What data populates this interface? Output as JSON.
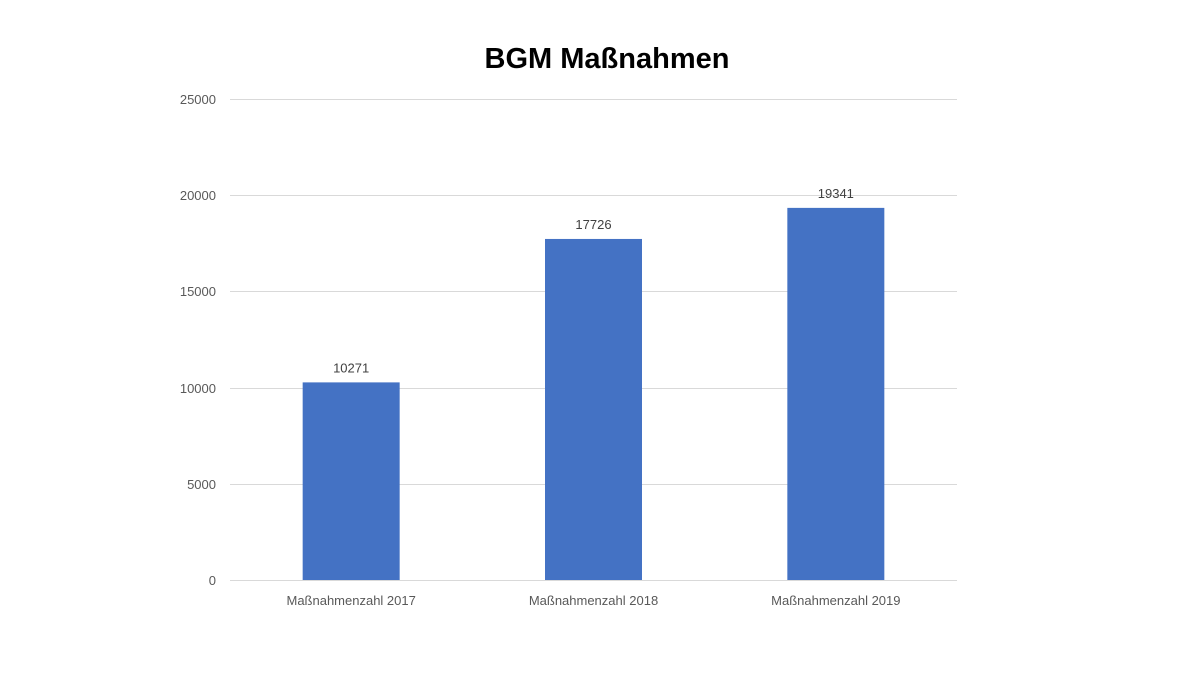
{
  "chart_data": {
    "type": "bar",
    "title": "BGM Maßnahmen",
    "categories": [
      "Maßnahmenzahl 2017",
      "Maßnahmenzahl 2018",
      "Maßnahmenzahl 2019"
    ],
    "values": [
      10271,
      17726,
      19341
    ],
    "data_labels": [
      "10271",
      "17726",
      "19341"
    ],
    "xlabel": "",
    "ylabel": "",
    "ylim": [
      0,
      25000
    ],
    "yticks": [
      0,
      5000,
      10000,
      15000,
      20000,
      25000
    ],
    "ytick_labels": [
      "0",
      "5000",
      "10000",
      "15000",
      "20000",
      "25000"
    ],
    "grid": true,
    "legend": "none",
    "bar_color": "#4472c4"
  }
}
